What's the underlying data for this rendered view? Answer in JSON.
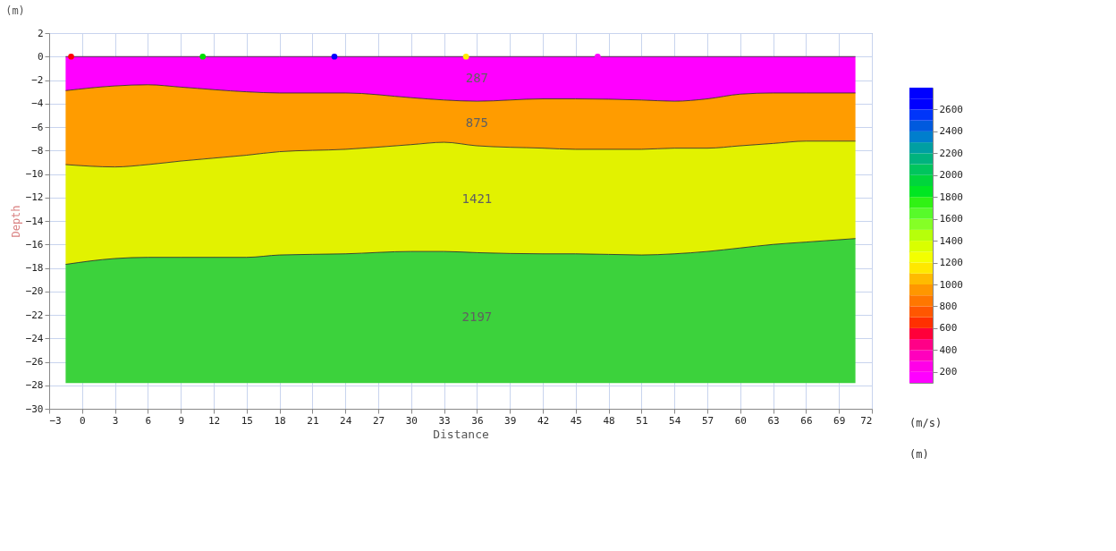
{
  "chart_data": {
    "type": "area",
    "stacked": true,
    "xlabel": "Distance",
    "ylabel": "Depth",
    "annotations": [
      "(m)",
      "(m)"
    ],
    "x": [
      -1.5,
      3,
      6,
      9,
      15,
      18,
      24,
      30,
      33,
      36,
      42,
      45,
      51,
      54,
      57,
      60,
      63,
      66,
      70.5
    ],
    "series": [
      {
        "name": "287",
        "color": "#ff00ff",
        "values": [
          -2.9,
          -2.5,
          -2.4,
          -2.6,
          -3.0,
          -3.1,
          -3.1,
          -3.5,
          -3.7,
          -3.8,
          -3.6,
          -3.6,
          -3.7,
          -3.8,
          -3.6,
          -3.2,
          -3.1,
          -3.1,
          -3.1
        ]
      },
      {
        "name": "875",
        "color": "#ff9c00",
        "values": [
          -6.3,
          -6.9,
          -6.8,
          -6.3,
          -5.4,
          -5.0,
          -4.8,
          -4.0,
          -3.6,
          -3.8,
          -4.2,
          -4.3,
          -4.2,
          -4.0,
          -4.2,
          -4.4,
          -4.3,
          -4.1,
          -4.1
        ]
      },
      {
        "name": "1421",
        "color": "#e2f200",
        "values": [
          -8.5,
          -7.8,
          -7.9,
          -8.2,
          -8.7,
          -8.8,
          -8.9,
          -9.1,
          -9.3,
          -9.1,
          -9.0,
          -8.9,
          -9.0,
          -9.0,
          -8.8,
          -8.7,
          -8.6,
          -8.6,
          -8.3
        ]
      },
      {
        "name": "2197",
        "color": "#3cd23c",
        "values": [
          -10.1,
          -10.6,
          -10.7,
          -10.7,
          -10.7,
          -10.9,
          -11.0,
          -11.2,
          -11.2,
          -11.1,
          -11.0,
          -11.0,
          -10.9,
          -11.0,
          -11.2,
          -11.5,
          -11.8,
          -12.0,
          -12.3
        ]
      },
      {
        "type": "scatter",
        "marker": "circle",
        "x": [
          -1,
          11,
          23,
          35,
          47
        ],
        "values": [
          0,
          0,
          0,
          0,
          0
        ],
        "colors": [
          "#ff0000",
          "#00dd00",
          "#0000ff",
          "#ffee00",
          "#ff00ff"
        ]
      }
    ],
    "xlim": [
      -3,
      72
    ],
    "xticks": [
      -3,
      0,
      3,
      6,
      9,
      12,
      15,
      18,
      21,
      24,
      27,
      30,
      33,
      36,
      39,
      42,
      45,
      48,
      51,
      54,
      57,
      60,
      63,
      66,
      69,
      72
    ],
    "ylim": [
      -30,
      2
    ],
    "yticks": [
      -30,
      -28,
      -26,
      -24,
      -22,
      -20,
      -18,
      -16,
      -14,
      -12,
      -10,
      -8,
      -6,
      -4,
      -2,
      0,
      2
    ],
    "grid": true,
    "clabel": "(m/s)",
    "clim": [
      100,
      2800
    ],
    "cticks": [
      200,
      400,
      600,
      800,
      1000,
      1200,
      1400,
      1600,
      1800,
      2000,
      2200,
      2400,
      2600
    ]
  }
}
